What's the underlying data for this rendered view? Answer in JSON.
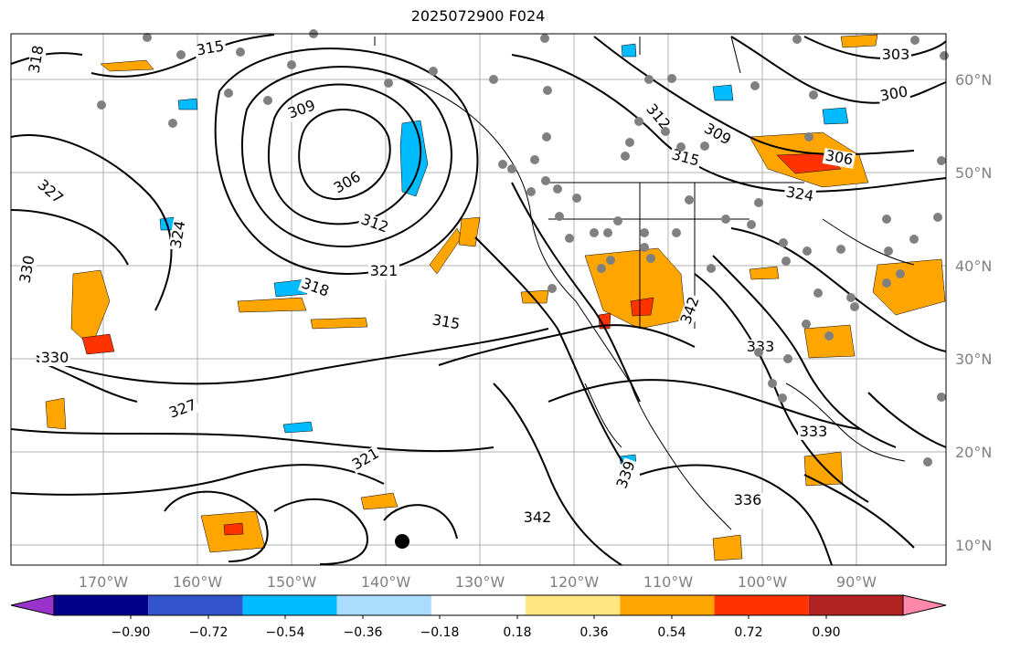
{
  "title": "2025072900 F024",
  "lat_labels": [
    "60°N",
    "50°N",
    "40°N",
    "30°N",
    "20°N",
    "10°N"
  ],
  "lon_labels": [
    "170°W",
    "160°W",
    "150°W",
    "140°W",
    "130°W",
    "120°W",
    "110°W",
    "100°W",
    "90°W"
  ],
  "colorbar": {
    "ticks": [
      "−0.90",
      "−0.72",
      "−0.54",
      "−0.36",
      "−0.18",
      "0.18",
      "0.36",
      "0.54",
      "0.72",
      "0.90"
    ],
    "colors": [
      "#9933cc",
      "#000088",
      "#3355cc",
      "#00bbff",
      "#aaddff",
      "#ffffff",
      "#ffe680",
      "#ffa500",
      "#ff3300",
      "#b22222",
      "#ff88aa"
    ]
  },
  "contour_labels": [
    {
      "text": "315"
    },
    {
      "text": "318"
    },
    {
      "text": "309"
    },
    {
      "text": "306"
    },
    {
      "text": "312"
    },
    {
      "text": "321"
    },
    {
      "text": "324"
    },
    {
      "text": "327"
    },
    {
      "text": "330"
    },
    {
      "text": "318"
    },
    {
      "text": "315"
    },
    {
      "text": "303"
    },
    {
      "text": "300"
    },
    {
      "text": "306"
    },
    {
      "text": "324"
    },
    {
      "text": "336"
    },
    {
      "text": "339"
    },
    {
      "text": "342"
    },
    {
      "text": "333"
    },
    {
      "text": "327"
    },
    {
      "text": "321"
    },
    {
      "text": "312"
    },
    {
      "text": "309"
    },
    {
      "text": "315"
    },
    {
      "text": "333"
    },
    {
      "text": "342"
    },
    {
      "text": "330"
    }
  ],
  "legend_colors": {
    "neg_strong": "#00bbff",
    "pos_weak": "#ffa500",
    "pos_strong": "#ff3300"
  }
}
